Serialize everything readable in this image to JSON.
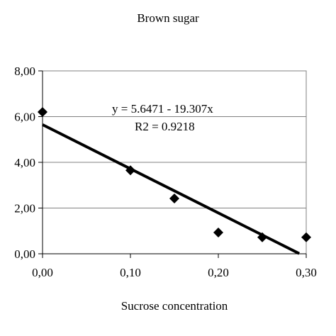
{
  "chart_data": {
    "type": "scatter",
    "title": "Brown sugar",
    "xlabel": "Sucrose concentration",
    "ylabel": "",
    "xlim": [
      0,
      0.3
    ],
    "ylim": [
      0,
      8
    ],
    "x_ticks": [
      "0,00",
      "0,10",
      "0,20",
      "0,30"
    ],
    "x_tick_values": [
      0,
      0.1,
      0.2,
      0.3
    ],
    "y_ticks": [
      "0,00",
      "2,00",
      "4,00",
      "6,00",
      "8,00"
    ],
    "y_tick_values": [
      0,
      2,
      4,
      6,
      8
    ],
    "grid": "horizontal",
    "series": [
      {
        "marker": "diamond",
        "x": [
          0,
          0.1,
          0.15,
          0.2,
          0.25,
          0.3
        ],
        "y": [
          6.2,
          3.65,
          2.42,
          0.93,
          0.72,
          0.72
        ]
      }
    ],
    "trendline": {
      "intercept": 5.6471,
      "slope": -19.307,
      "x_range": [
        0,
        0.292
      ],
      "equation_label": "y =  5.6471 - 19.307x",
      "r2_label": "R2 = 0.9218"
    }
  }
}
